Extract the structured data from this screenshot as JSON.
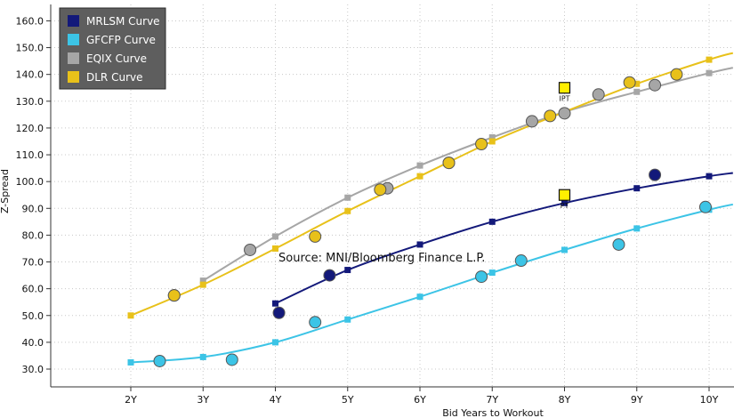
{
  "chart_data": {
    "type": "line",
    "title": "",
    "xlabel": "Bid Years to Workout",
    "ylabel": "Z-Spread",
    "source": "Source: MNI/Bloomberg Finance L.P.",
    "xlim": [
      1.0,
      10.33
    ],
    "ylim": [
      25,
      164
    ],
    "xticks": [
      2,
      3,
      4,
      5,
      6,
      7,
      8,
      9,
      10
    ],
    "xtick_labels": [
      "2Y",
      "3Y",
      "4Y",
      "5Y",
      "6Y",
      "7Y",
      "8Y",
      "9Y",
      "10Y"
    ],
    "yticks": [
      30,
      40,
      50,
      60,
      70,
      80,
      90,
      100,
      110,
      120,
      130,
      140,
      150,
      160
    ],
    "ytick_labels": [
      "30.0",
      "40.0",
      "50.0",
      "60.0",
      "70.0",
      "80.0",
      "90.0",
      "100.0",
      "110.0",
      "120.0",
      "130.0",
      "140.0",
      "150.0",
      "160.0"
    ],
    "grid": true,
    "legend_position": "top-left",
    "series": [
      {
        "name": "MRLSM Curve",
        "color": "#13197a",
        "curve": [
          [
            4,
            54.5
          ],
          [
            5,
            67
          ],
          [
            6,
            76.5
          ],
          [
            7,
            85
          ],
          [
            8,
            92
          ],
          [
            9,
            97.5
          ],
          [
            10,
            102
          ],
          [
            10.33,
            103.2
          ]
        ],
        "bonds": [
          [
            4.05,
            51
          ],
          [
            4.75,
            65
          ],
          [
            9.25,
            102.5
          ]
        ]
      },
      {
        "name": "GFCFP Curve",
        "color": "#3cc4e6",
        "curve": [
          [
            2,
            32.5
          ],
          [
            3,
            34.5
          ],
          [
            4,
            40
          ],
          [
            5,
            48.5
          ],
          [
            6,
            57
          ],
          [
            7,
            66
          ],
          [
            8,
            74.5
          ],
          [
            9,
            82.5
          ],
          [
            10,
            89.5
          ],
          [
            10.33,
            91.5
          ]
        ],
        "bonds": [
          [
            2.4,
            33
          ],
          [
            3.4,
            33.5
          ],
          [
            4.55,
            47.5
          ],
          [
            6.85,
            64.5
          ],
          [
            7.4,
            70.5
          ],
          [
            8.75,
            76.5
          ],
          [
            9.95,
            90.5
          ]
        ]
      },
      {
        "name": "EQIX Curve",
        "color": "#a6a6a6",
        "curve": [
          [
            3,
            63
          ],
          [
            4,
            79.5
          ],
          [
            5,
            94
          ],
          [
            6,
            106
          ],
          [
            7,
            116.5
          ],
          [
            8,
            126
          ],
          [
            9,
            133.5
          ],
          [
            10,
            140.5
          ],
          [
            10.33,
            142.5
          ]
        ],
        "bonds": [
          [
            2.6,
            57.5
          ],
          [
            3.65,
            74.5
          ],
          [
            5.55,
            97.5
          ],
          [
            6.4,
            107
          ],
          [
            7.55,
            122.5
          ],
          [
            8.0,
            125.5
          ],
          [
            8.47,
            132.5
          ],
          [
            9.25,
            136
          ]
        ]
      },
      {
        "name": "DLR Curve",
        "color": "#e8c11a",
        "curve": [
          [
            2,
            50
          ],
          [
            3,
            61.5
          ],
          [
            4,
            75
          ],
          [
            5,
            89
          ],
          [
            6,
            102
          ],
          [
            7,
            115
          ],
          [
            8,
            126
          ],
          [
            9,
            136.5
          ],
          [
            10,
            145.5
          ],
          [
            10.33,
            148
          ]
        ],
        "bonds": [
          [
            2.6,
            57.5
          ],
          [
            4.55,
            79.5
          ],
          [
            5.45,
            97
          ],
          [
            6.85,
            114
          ],
          [
            7.8,
            124.5
          ],
          [
            6.4,
            107
          ],
          [
            8.9,
            137
          ],
          [
            9.55,
            140
          ]
        ]
      }
    ],
    "annotations": [
      {
        "label": "IPT",
        "x": 8.0,
        "y": 135
      },
      {
        "label": "PT",
        "x": 8.0,
        "y": 95
      }
    ]
  }
}
